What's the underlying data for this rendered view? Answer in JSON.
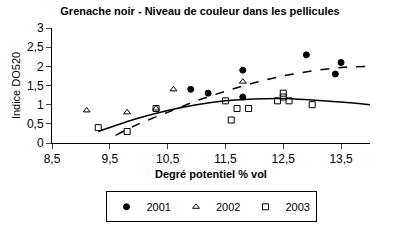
{
  "chart_data": {
    "type": "scatter",
    "title": "Grenache noir - Niveau de couleur dans les pellicules",
    "x_label": "Degré potentiel % vol",
    "y_label": "Indice DO520",
    "xlim": [
      8.5,
      14
    ],
    "xticks": [
      {
        "value": 8.5,
        "label": "8,5"
      },
      {
        "value": 9.5,
        "label": "9,5"
      },
      {
        "value": 10.5,
        "label": "10,5"
      },
      {
        "value": 11.5,
        "label": "11,5"
      },
      {
        "value": 12.5,
        "label": "12,5"
      },
      {
        "value": 13.5,
        "label": "13,5"
      }
    ],
    "ylim": [
      0,
      3
    ],
    "yticks": [
      0,
      {
        "value": 0.5,
        "label": "0,5"
      },
      1,
      {
        "value": 1.5,
        "label": "1,5"
      },
      2,
      {
        "value": 2.5,
        "label": "2,5"
      },
      3
    ],
    "grid": false,
    "legend": "bottom",
    "series": [
      {
        "name": "2001",
        "color": "#000000",
        "marker": "circle",
        "x": [
          10.9,
          11.2,
          11.8,
          11.8,
          12.9,
          13.4,
          13.5
        ],
        "values": [
          1.4,
          1.3,
          1.9,
          1.2,
          2.3,
          1.8,
          2.1
        ],
        "trend": {
          "line_style": "dashed",
          "x": [
            9.6,
            10.0,
            10.5,
            11.0,
            11.5,
            12.0,
            12.5,
            13.0,
            13.5,
            14.0
          ],
          "values": [
            0.2,
            0.5,
            0.8,
            1.1,
            1.35,
            1.57,
            1.75,
            1.88,
            1.97,
            2.0
          ]
        }
      },
      {
        "name": "2002",
        "color": "#000000",
        "marker": "triangle-open",
        "x": [
          9.1,
          9.8,
          10.3,
          10.6,
          11.8
        ],
        "values": [
          0.85,
          0.8,
          0.9,
          1.4,
          1.6
        ]
      },
      {
        "name": "2003",
        "color": "#000000",
        "marker": "square-open",
        "x": [
          9.3,
          9.8,
          10.3,
          11.5,
          11.6,
          11.7,
          11.9,
          12.4,
          12.5,
          12.5,
          12.6,
          13.0
        ],
        "values": [
          0.4,
          0.3,
          0.9,
          1.1,
          0.6,
          0.9,
          0.9,
          1.1,
          1.3,
          1.2,
          1.1,
          1.0
        ],
        "trend": {
          "line_style": "solid",
          "x": [
            9.3,
            10.0,
            10.5,
            11.0,
            11.5,
            12.0,
            12.5,
            13.0,
            13.5,
            14.0
          ],
          "values": [
            0.3,
            0.65,
            0.85,
            1.0,
            1.1,
            1.15,
            1.16,
            1.12,
            1.07,
            1.0
          ]
        }
      }
    ]
  }
}
